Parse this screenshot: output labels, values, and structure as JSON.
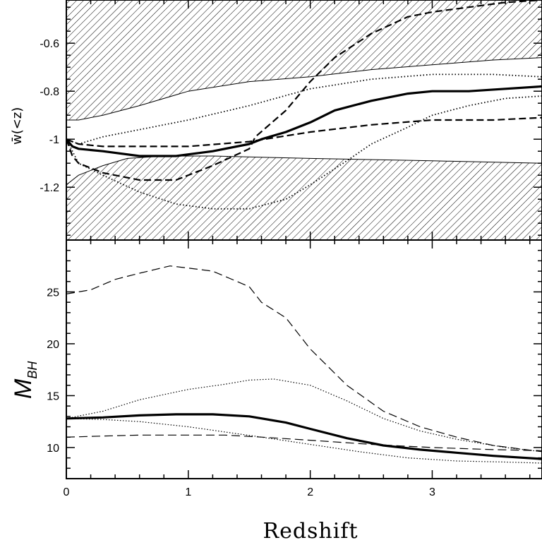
{
  "chart_data": [
    {
      "type": "line",
      "ylabel": "w̄(<z)",
      "ylim": [
        -1.42,
        -0.42
      ],
      "xlim": [
        0,
        3.9
      ],
      "yticks": [
        -1.2,
        -1,
        -0.8,
        -0.6
      ],
      "ytick_labels": [
        "-1.2",
        "-1",
        "-0.8",
        "-0.6"
      ],
      "shaded_bands": [
        {
          "name": "upper-excluded",
          "lower_edge": {
            "x": [
              0,
              0.1,
              0.3,
              0.6,
              1.0,
              1.5,
              2.0,
              2.5,
              3.0,
              3.5,
              3.9
            ],
            "y": [
              -0.92,
              -0.92,
              -0.9,
              -0.86,
              -0.8,
              -0.76,
              -0.74,
              -0.71,
              -0.69,
              -0.67,
              -0.66
            ]
          }
        },
        {
          "name": "lower-excluded",
          "upper_edge": {
            "x": [
              0,
              0.1,
              0.3,
              0.5,
              0.8,
              1.2,
              2.0,
              3.0,
              3.9
            ],
            "y": [
              -1.19,
              -1.15,
              -1.11,
              -1.08,
              -1.07,
              -1.07,
              -1.08,
              -1.09,
              -1.1
            ]
          }
        }
      ],
      "series": [
        {
          "style": "thick-solid",
          "x": [
            0,
            0.05,
            0.1,
            0.3,
            0.6,
            0.9,
            1.2,
            1.5,
            1.6,
            1.8,
            2.0,
            2.2,
            2.5,
            2.8,
            3.0,
            3.3,
            3.6,
            3.9
          ],
          "y": [
            -1.0,
            -1.03,
            -1.04,
            -1.05,
            -1.07,
            -1.07,
            -1.05,
            -1.02,
            -1.0,
            -0.97,
            -0.93,
            -0.88,
            -0.84,
            -0.81,
            -0.8,
            -0.8,
            -0.79,
            -0.78
          ]
        },
        {
          "style": "dotted-upper",
          "x": [
            0,
            0.1,
            0.3,
            0.6,
            1.0,
            1.5,
            2.0,
            2.5,
            3.0,
            3.5,
            3.9
          ],
          "y": [
            -1.0,
            -1.02,
            -0.99,
            -0.96,
            -0.92,
            -0.86,
            -0.79,
            -0.75,
            -0.73,
            -0.73,
            -0.74
          ]
        },
        {
          "style": "dotted-lower",
          "x": [
            0,
            0.1,
            0.3,
            0.6,
            0.9,
            1.2,
            1.5,
            1.8,
            2.0,
            2.3,
            2.5,
            2.8,
            3.0,
            3.3,
            3.6,
            3.9
          ],
          "y": [
            -1.0,
            -1.1,
            -1.15,
            -1.22,
            -1.27,
            -1.29,
            -1.29,
            -1.25,
            -1.19,
            -1.09,
            -1.02,
            -0.95,
            -0.9,
            -0.86,
            -0.83,
            -0.82
          ]
        },
        {
          "style": "dashed-flat",
          "x": [
            0,
            0.1,
            0.3,
            0.6,
            1.0,
            1.5,
            2.0,
            2.5,
            3.0,
            3.5,
            3.9
          ],
          "y": [
            -1.0,
            -1.02,
            -1.03,
            -1.03,
            -1.03,
            -1.01,
            -0.97,
            -0.94,
            -0.92,
            -0.92,
            -0.91
          ]
        },
        {
          "style": "dashed-steep",
          "x": [
            0,
            0.05,
            0.1,
            0.3,
            0.6,
            0.9,
            1.2,
            1.5,
            1.55,
            1.8,
            2.0,
            2.2,
            2.5,
            2.8,
            3.0,
            3.3,
            3.6,
            3.9
          ],
          "y": [
            -1.0,
            -1.07,
            -1.1,
            -1.14,
            -1.17,
            -1.17,
            -1.11,
            -1.04,
            -0.99,
            -0.88,
            -0.76,
            -0.66,
            -0.56,
            -0.49,
            -0.47,
            -0.45,
            -0.43,
            -0.42
          ]
        }
      ]
    },
    {
      "type": "line",
      "ylabel": "M",
      "ylabel_sub": "BH",
      "xlabel": "Redshift",
      "ylim": [
        7,
        30
      ],
      "xlim": [
        0,
        3.9
      ],
      "xticks": [
        0,
        1,
        2,
        3
      ],
      "xtick_labels": [
        "0",
        "1",
        "2",
        "3"
      ],
      "yticks": [
        10,
        15,
        20,
        25
      ],
      "ytick_labels": [
        "10",
        "15",
        "20",
        "25"
      ],
      "series": [
        {
          "style": "thick-solid",
          "x": [
            0,
            0.3,
            0.6,
            0.9,
            1.0,
            1.2,
            1.5,
            1.8,
            2.0,
            2.3,
            2.6,
            2.9,
            3.2,
            3.5,
            3.9
          ],
          "y": [
            12.8,
            12.9,
            13.1,
            13.2,
            13.2,
            13.2,
            13.0,
            12.4,
            11.8,
            10.9,
            10.2,
            9.8,
            9.5,
            9.2,
            8.9
          ]
        },
        {
          "style": "dashed-high",
          "x": [
            0,
            0.2,
            0.4,
            0.6,
            0.85,
            1.0,
            1.2,
            1.5,
            1.6,
            1.8,
            2.0,
            2.3,
            2.6,
            2.9,
            3.2,
            3.5,
            3.9
          ],
          "y": [
            24.8,
            25.2,
            26.2,
            26.8,
            27.5,
            27.3,
            27.0,
            25.5,
            24.0,
            22.5,
            19.5,
            16.0,
            13.5,
            12.0,
            11.0,
            10.2,
            9.6
          ]
        },
        {
          "style": "dotted-high",
          "x": [
            0,
            0.3,
            0.6,
            1.0,
            1.3,
            1.5,
            1.7,
            2.0,
            2.3,
            2.6,
            2.9,
            3.2,
            3.6,
            3.9
          ],
          "y": [
            12.8,
            13.5,
            14.6,
            15.6,
            16.1,
            16.5,
            16.6,
            16.0,
            14.5,
            12.8,
            11.6,
            10.8,
            10.0,
            9.6
          ]
        },
        {
          "style": "dotted-low",
          "x": [
            0,
            0.3,
            0.6,
            1.0,
            1.3,
            1.6,
            2.0,
            2.4,
            2.8,
            3.2,
            3.6,
            3.9
          ],
          "y": [
            12.8,
            12.7,
            12.5,
            12.0,
            11.5,
            11.0,
            10.3,
            9.6,
            9.0,
            8.7,
            8.6,
            8.5
          ]
        },
        {
          "style": "dashed-low",
          "x": [
            0,
            0.3,
            0.6,
            1.0,
            1.3,
            1.6,
            2.0,
            2.5,
            3.0,
            3.5,
            3.9
          ],
          "y": [
            11.0,
            11.1,
            11.2,
            11.2,
            11.2,
            11.0,
            10.7,
            10.3,
            10.0,
            9.8,
            9.7
          ]
        }
      ]
    }
  ]
}
